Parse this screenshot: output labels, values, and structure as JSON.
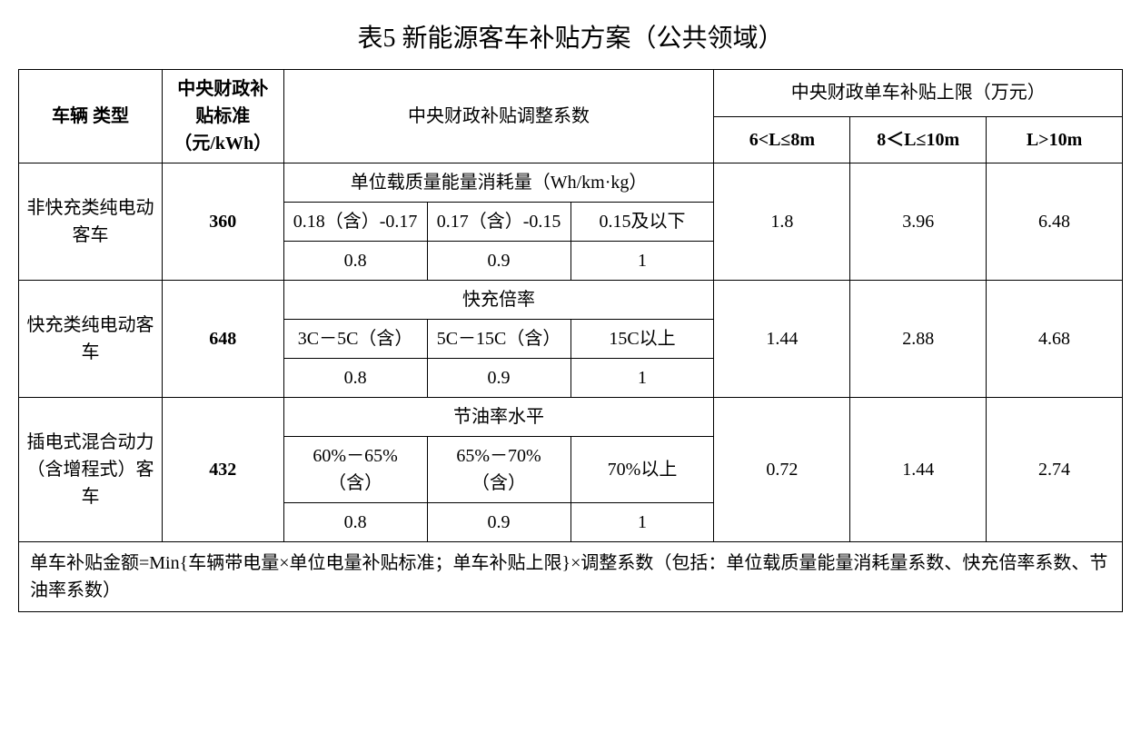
{
  "title": "表5 新能源客车补贴方案（公共领域）",
  "headers": {
    "vehicle_type": "车辆\n类型",
    "subsidy_std": "中央财政补贴标准（元/kWh）",
    "adj_coef": "中央财政补贴调整系数",
    "cap_parent": "中央财政单车补贴上限（万元）",
    "cap_6_8": "6<L≤8m",
    "cap_8_10": "8＜L≤10m",
    "cap_gt10": "L>10m"
  },
  "rows": [
    {
      "type": "非快充类纯电动客车",
      "std": "360",
      "metric_label": "单位载质量能量消耗量（Wh/km·kg）",
      "ranges": [
        "0.18（含）-0.17",
        "0.17（含）-0.15",
        "0.15及以下"
      ],
      "coefs": [
        "0.8",
        "0.9",
        "1"
      ],
      "caps": [
        "1.8",
        "3.96",
        "6.48"
      ]
    },
    {
      "type": "快充类纯电动客车",
      "std": "648",
      "metric_label": "快充倍率",
      "ranges": [
        "3C－5C（含）",
        "5C－15C（含）",
        "15C以上"
      ],
      "coefs": [
        "0.8",
        "0.9",
        "1"
      ],
      "caps": [
        "1.44",
        "2.88",
        "4.68"
      ]
    },
    {
      "type": "插电式混合动力（含增程式）客车",
      "std": "432",
      "metric_label": "节油率水平",
      "ranges": [
        "60%－65%（含）",
        "65%－70%（含）",
        "70%以上"
      ],
      "coefs": [
        "0.8",
        "0.9",
        "1"
      ],
      "caps": [
        "0.72",
        "1.44",
        "2.74"
      ]
    }
  ],
  "footnote": "单车补贴金额=Min{车辆带电量×单位电量补贴标准；单车补贴上限}×调整系数（包括：单位载质量能量消耗量系数、快充倍率系数、节油率系数）",
  "style": {
    "border_color": "#000000",
    "background_color": "#ffffff",
    "title_fontsize": 28,
    "cell_fontsize": 20
  }
}
